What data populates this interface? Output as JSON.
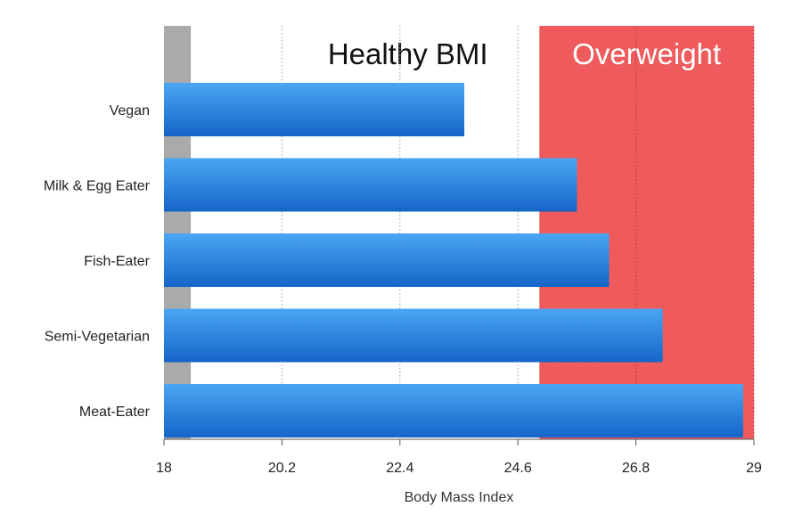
{
  "chart_data": {
    "type": "bar",
    "orientation": "horizontal",
    "title": "",
    "xlabel": "Body Mass Index",
    "ylabel": "",
    "xlim": [
      18,
      29
    ],
    "x_ticks": [
      18,
      20.2,
      22.4,
      24.6,
      26.8,
      29
    ],
    "x_tick_labels": [
      "18",
      "20.2",
      "22.4",
      "24.6",
      "26.8",
      "29"
    ],
    "categories": [
      "Vegan",
      "Milk & Egg Eater",
      "Fish-Eater",
      "Semi-Vegetarian",
      "Meat-Eater"
    ],
    "values": [
      23.6,
      25.7,
      26.3,
      27.3,
      28.8
    ],
    "grid": "vertical dotted",
    "bands": [
      {
        "name": "underweight",
        "label": "",
        "from": 18,
        "to": 18.5,
        "color": "#a9aaa9"
      },
      {
        "name": "healthy",
        "label": "Healthy BMI",
        "from": 18.5,
        "to": 25,
        "color": "#ffffff"
      },
      {
        "name": "overweight",
        "label": "Overweight",
        "from": 25,
        "to": 30,
        "color": "#ef5a5c"
      }
    ],
    "colors": {
      "bar_top": "#4aa6f2",
      "bar_bottom": "#1565c8",
      "healthy_text": "#111111",
      "overweight_text": "#ffffff",
      "grid": "#9a9a9a"
    }
  }
}
